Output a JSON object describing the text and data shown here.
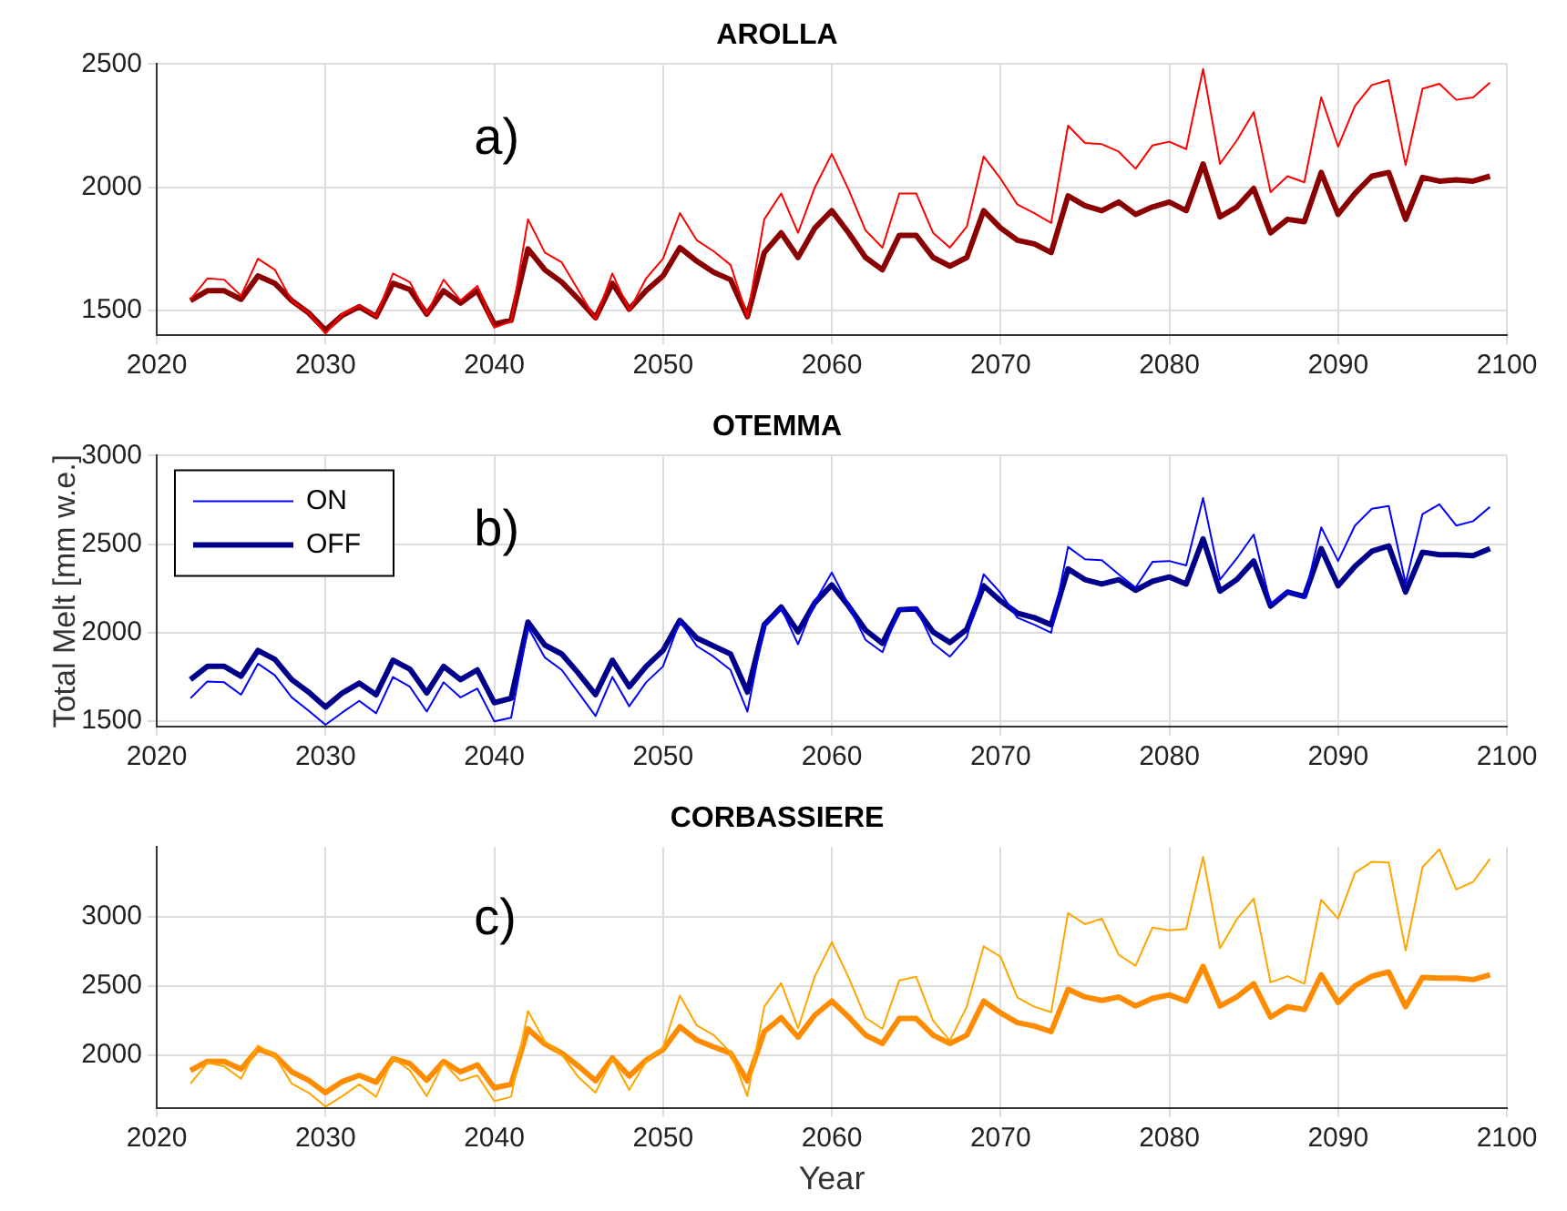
{
  "chart_data": [
    {
      "type": "line",
      "title": "AROLLA",
      "annotations": [
        "a)"
      ],
      "x": [
        2022,
        2023,
        2024,
        2025,
        2026,
        2027,
        2028,
        2029,
        2030,
        2031,
        2032,
        2033,
        2034,
        2035,
        2036,
        2037,
        2038,
        2039,
        2040,
        2041,
        2042,
        2043,
        2044,
        2045,
        2046,
        2047,
        2048,
        2049,
        2050,
        2051,
        2052,
        2053,
        2054,
        2055,
        2056,
        2057,
        2058,
        2059,
        2060,
        2061,
        2062,
        2063,
        2064,
        2065,
        2066,
        2067,
        2068,
        2069,
        2070,
        2071,
        2072,
        2073,
        2074,
        2075,
        2076,
        2077,
        2078,
        2079,
        2080,
        2081,
        2082,
        2083,
        2084,
        2085,
        2086,
        2087,
        2088,
        2089,
        2090,
        2091,
        2092,
        2093,
        2094,
        2095,
        2096,
        2097,
        2098,
        2099
      ],
      "series": [
        {
          "color": "#ff0000",
          "values": [
            1545,
            1630,
            1625,
            1560,
            1710,
            1665,
            1540,
            1490,
            1405,
            1485,
            1520,
            1475,
            1650,
            1615,
            1485,
            1625,
            1540,
            1600,
            1430,
            1455,
            1870,
            1735,
            1695,
            1580,
            1465,
            1650,
            1500,
            1630,
            1710,
            1895,
            1785,
            1740,
            1685,
            1475,
            1870,
            1975,
            1815,
            2000,
            2135,
            1990,
            1825,
            1755,
            1975,
            1975,
            1815,
            1755,
            1840,
            2125,
            2035,
            1930,
            1895,
            1855,
            2250,
            2180,
            2175,
            2145,
            2075,
            2170,
            2185,
            2155,
            2480,
            2095,
            2190,
            2305,
            1980,
            2045,
            2020,
            2365,
            2165,
            2330,
            2415,
            2435,
            2090,
            2400,
            2420,
            2355,
            2365,
            2425
          ]
        },
        {
          "color": "#8b0000",
          "values": [
            1540,
            1580,
            1580,
            1545,
            1640,
            1610,
            1540,
            1490,
            1420,
            1480,
            1515,
            1475,
            1610,
            1585,
            1485,
            1580,
            1530,
            1580,
            1445,
            1460,
            1750,
            1665,
            1615,
            1545,
            1470,
            1610,
            1505,
            1580,
            1640,
            1755,
            1700,
            1655,
            1625,
            1475,
            1735,
            1815,
            1715,
            1835,
            1905,
            1815,
            1715,
            1665,
            1805,
            1805,
            1715,
            1680,
            1715,
            1905,
            1835,
            1785,
            1770,
            1735,
            1965,
            1925,
            1905,
            1940,
            1890,
            1920,
            1940,
            1905,
            2095,
            1880,
            1920,
            1995,
            1815,
            1870,
            1860,
            2060,
            1890,
            1975,
            2045,
            2060,
            1870,
            2040,
            2025,
            2030,
            2025,
            2045
          ]
        }
      ],
      "xlim": [
        2020,
        2100
      ],
      "xticks": [
        2020,
        2030,
        2040,
        2050,
        2060,
        2070,
        2080,
        2090,
        2100
      ],
      "ylim": [
        1400,
        2500
      ],
      "yticks": [
        1500,
        2000,
        2500
      ],
      "grid": true,
      "legend": false,
      "line_style": "solid",
      "marker": "none"
    },
    {
      "type": "line",
      "title": "OTEMMA",
      "ylabel": "Total Melt [mm w.e.]",
      "annotations": [
        "b)"
      ],
      "x": [
        2022,
        2023,
        2024,
        2025,
        2026,
        2027,
        2028,
        2029,
        2030,
        2031,
        2032,
        2033,
        2034,
        2035,
        2036,
        2037,
        2038,
        2039,
        2040,
        2041,
        2042,
        2043,
        2044,
        2045,
        2046,
        2047,
        2048,
        2049,
        2050,
        2051,
        2052,
        2053,
        2054,
        2055,
        2056,
        2057,
        2058,
        2059,
        2060,
        2061,
        2062,
        2063,
        2064,
        2065,
        2066,
        2067,
        2068,
        2069,
        2070,
        2071,
        2072,
        2073,
        2074,
        2075,
        2076,
        2077,
        2078,
        2079,
        2080,
        2081,
        2082,
        2083,
        2084,
        2085,
        2086,
        2087,
        2088,
        2089,
        2090,
        2091,
        2092,
        2093,
        2094,
        2095,
        2096,
        2097,
        2098,
        2099
      ],
      "series": [
        {
          "name": "ON",
          "color": "#0000ff",
          "values": [
            1630,
            1725,
            1720,
            1650,
            1825,
            1760,
            1635,
            1560,
            1480,
            1550,
            1615,
            1545,
            1750,
            1695,
            1555,
            1720,
            1635,
            1685,
            1500,
            1520,
            2030,
            1860,
            1790,
            1660,
            1530,
            1750,
            1585,
            1720,
            1810,
            2065,
            1925,
            1865,
            1790,
            1555,
            2040,
            2140,
            1935,
            2175,
            2340,
            2155,
            1960,
            1890,
            2130,
            2140,
            1940,
            1865,
            1975,
            2330,
            2225,
            2085,
            2045,
            2000,
            2485,
            2415,
            2410,
            2330,
            2255,
            2400,
            2405,
            2380,
            2760,
            2300,
            2420,
            2555,
            2160,
            2235,
            2195,
            2595,
            2405,
            2605,
            2700,
            2715,
            2280,
            2670,
            2725,
            2605,
            2630,
            2710
          ]
        },
        {
          "name": "OFF",
          "color": "#00008b",
          "values": [
            1735,
            1810,
            1810,
            1755,
            1900,
            1850,
            1735,
            1665,
            1580,
            1660,
            1715,
            1650,
            1845,
            1795,
            1660,
            1810,
            1735,
            1790,
            1605,
            1630,
            2060,
            1930,
            1880,
            1770,
            1650,
            1845,
            1695,
            1810,
            1900,
            2070,
            1970,
            1925,
            1880,
            1665,
            2045,
            2145,
            2005,
            2170,
            2270,
            2150,
            2015,
            1940,
            2130,
            2135,
            2005,
            1945,
            2020,
            2265,
            2180,
            2110,
            2085,
            2045,
            2360,
            2300,
            2275,
            2300,
            2240,
            2290,
            2315,
            2275,
            2530,
            2235,
            2300,
            2405,
            2150,
            2230,
            2205,
            2475,
            2265,
            2375,
            2460,
            2490,
            2230,
            2455,
            2440,
            2440,
            2435,
            2475
          ]
        }
      ],
      "xlim": [
        2020,
        2100
      ],
      "xticks": [
        2020,
        2030,
        2040,
        2050,
        2060,
        2070,
        2080,
        2090,
        2100
      ],
      "ylim": [
        1470,
        3000
      ],
      "yticks": [
        1500,
        2000,
        2500,
        3000
      ],
      "grid": true,
      "legend": "top left",
      "line_style": "solid",
      "marker": "none"
    },
    {
      "type": "line",
      "title": "CORBASSIERE",
      "xlabel": "Year",
      "annotations": [
        "c)"
      ],
      "x": [
        2022,
        2023,
        2024,
        2025,
        2026,
        2027,
        2028,
        2029,
        2030,
        2031,
        2032,
        2033,
        2034,
        2035,
        2036,
        2037,
        2038,
        2039,
        2040,
        2041,
        2042,
        2043,
        2044,
        2045,
        2046,
        2047,
        2048,
        2049,
        2050,
        2051,
        2052,
        2053,
        2054,
        2055,
        2056,
        2057,
        2058,
        2059,
        2060,
        2061,
        2062,
        2063,
        2064,
        2065,
        2066,
        2067,
        2068,
        2069,
        2070,
        2071,
        2072,
        2073,
        2074,
        2075,
        2076,
        2077,
        2078,
        2079,
        2080,
        2081,
        2082,
        2083,
        2084,
        2085,
        2086,
        2087,
        2088,
        2089,
        2090,
        2091,
        2092,
        2093,
        2094,
        2095,
        2096,
        2097,
        2098,
        2099
      ],
      "series": [
        {
          "color": "#ffa500",
          "values": [
            1795,
            1945,
            1920,
            1830,
            2070,
            1995,
            1795,
            1730,
            1630,
            1705,
            1790,
            1700,
            1980,
            1890,
            1705,
            1945,
            1815,
            1855,
            1670,
            1700,
            2320,
            2100,
            2005,
            1840,
            1730,
            1975,
            1750,
            1955,
            2055,
            2430,
            2215,
            2145,
            2020,
            1705,
            2350,
            2520,
            2195,
            2570,
            2815,
            2560,
            2270,
            2190,
            2540,
            2565,
            2250,
            2105,
            2350,
            2785,
            2710,
            2415,
            2350,
            2310,
            3025,
            2945,
            2985,
            2725,
            2645,
            2920,
            2900,
            2910,
            3430,
            2770,
            2980,
            3130,
            2525,
            2570,
            2515,
            3120,
            2985,
            3315,
            3395,
            3390,
            2755,
            3355,
            3485,
            3195,
            3250,
            3415
          ]
        },
        {
          "color": "#ff8c00",
          "values": [
            1890,
            1955,
            1955,
            1900,
            2045,
            2000,
            1880,
            1820,
            1730,
            1810,
            1855,
            1805,
            1975,
            1940,
            1820,
            1955,
            1880,
            1930,
            1765,
            1790,
            2190,
            2080,
            2015,
            1920,
            1815,
            1980,
            1850,
            1965,
            2040,
            2205,
            2110,
            2060,
            2015,
            1815,
            2170,
            2270,
            2130,
            2290,
            2390,
            2275,
            2145,
            2085,
            2265,
            2265,
            2145,
            2085,
            2145,
            2390,
            2305,
            2235,
            2210,
            2170,
            2475,
            2420,
            2395,
            2420,
            2355,
            2410,
            2435,
            2390,
            2640,
            2355,
            2420,
            2515,
            2275,
            2350,
            2330,
            2580,
            2380,
            2500,
            2570,
            2600,
            2350,
            2560,
            2555,
            2555,
            2545,
            2580
          ]
        }
      ],
      "xlim": [
        2020,
        2100
      ],
      "xticks": [
        2020,
        2030,
        2040,
        2050,
        2060,
        2070,
        2080,
        2090,
        2100
      ],
      "ylim": [
        1620,
        3500
      ],
      "yticks": [
        2000,
        2500,
        3000
      ],
      "grid": true,
      "legend": false,
      "line_style": "solid",
      "marker": "none"
    }
  ]
}
